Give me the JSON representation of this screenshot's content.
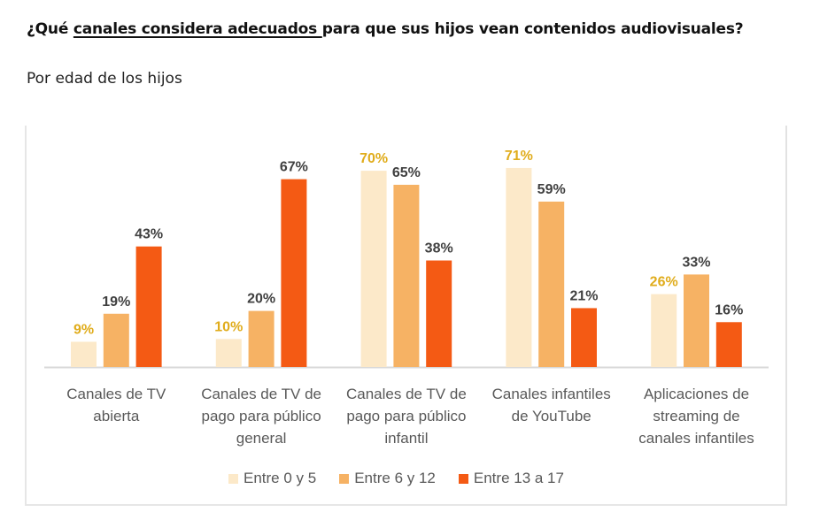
{
  "header": {
    "title_pre": "¿Qué ",
    "title_underlined": "canales considera adecuados ",
    "title_post": "para que sus hijos vean contenidos audiovisuales?",
    "subtitle": "Por edad de los hijos"
  },
  "chart_data": {
    "type": "bar",
    "title": "¿Qué canales considera adecuados para que sus hijos vean contenidos audiovisuales?",
    "subtitle": "Por edad de los hijos",
    "xlabel": "",
    "ylabel": "",
    "ylim": [
      0,
      75
    ],
    "grid": false,
    "legend_position": "bottom",
    "value_suffix": "%",
    "categories": [
      [
        "Canales de TV",
        "abierta"
      ],
      [
        "Canales de TV de",
        "pago para público",
        "general"
      ],
      [
        "Canales de TV de",
        "pago para público",
        "infantil"
      ],
      [
        "Canales infantiles",
        "de YouTube"
      ],
      [
        "Aplicaciones de",
        "streaming de",
        "canales infantiles"
      ]
    ],
    "series": [
      {
        "name": "Entre 0 y 5",
        "color": "#FCE9C9",
        "label_color": "#E0AC1B",
        "values": [
          9,
          10,
          70,
          71,
          26
        ]
      },
      {
        "name": "Entre 6 y 12",
        "color": "#F6B264",
        "label_color": "#404040",
        "values": [
          19,
          20,
          65,
          59,
          33
        ]
      },
      {
        "name": "Entre 13 a 17",
        "color": "#F45A14",
        "label_color": "#404040",
        "values": [
          43,
          67,
          38,
          21,
          16
        ]
      }
    ]
  },
  "legend": {
    "items": [
      {
        "label": "Entre 0 y 5",
        "color": "#FCE9C9"
      },
      {
        "label": "Entre 6 y 12",
        "color": "#F6B264"
      },
      {
        "label": "Entre 13 a 17",
        "color": "#F45A14"
      }
    ]
  },
  "colors": {
    "axis": "#d9d9d9",
    "border": "#e6e6e6"
  }
}
